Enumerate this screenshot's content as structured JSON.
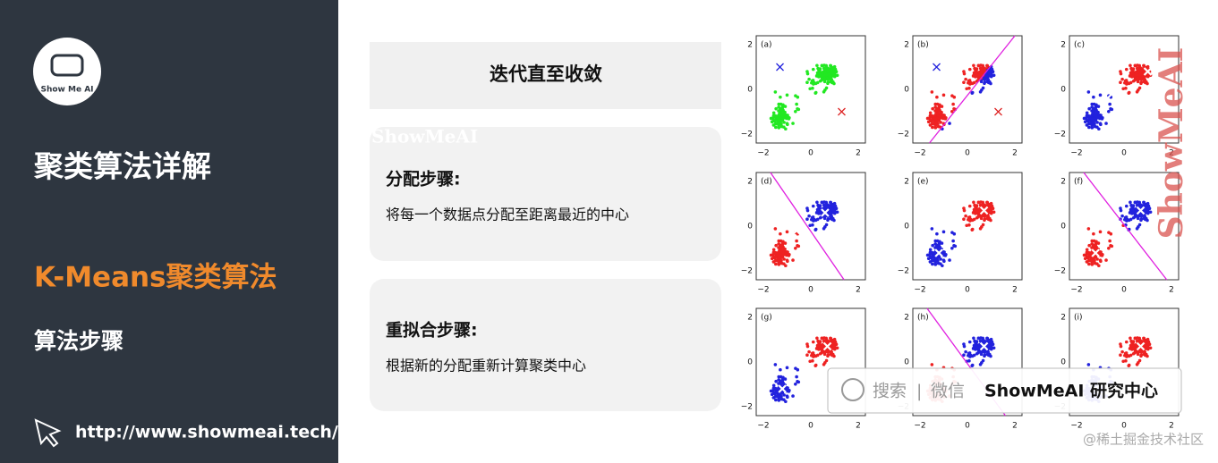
{
  "sidebar": {
    "logo": "Show Me AI",
    "title": "聚类算法详解",
    "subtitle": "K-Means聚类算法",
    "section": "算法步骤",
    "url": "http://www.showmeai.tech/"
  },
  "steps": {
    "header": "迭代直至收敛",
    "items": [
      {
        "title": "分配步骤:",
        "text": "将每一个数据点分配至距离最近的中心"
      },
      {
        "title": "重拟合步骤:",
        "text": "根据新的分配重新计算聚类中心"
      }
    ]
  },
  "figure": {
    "panels": [
      "(a)",
      "(b)",
      "(c)",
      "(d)",
      "(e)",
      "(f)",
      "(g)",
      "(h)",
      "(i)"
    ],
    "xticks": [
      "−2",
      "0",
      "2"
    ],
    "yticks": [
      "2",
      "0",
      "−2"
    ]
  },
  "watermarks": {
    "brand": "ShowMeAI",
    "search": "搜索",
    "divider": "|",
    "wechat": "微信",
    "account": "ShowMeAI 研究中心",
    "source": "@稀土掘金技术社区"
  }
}
